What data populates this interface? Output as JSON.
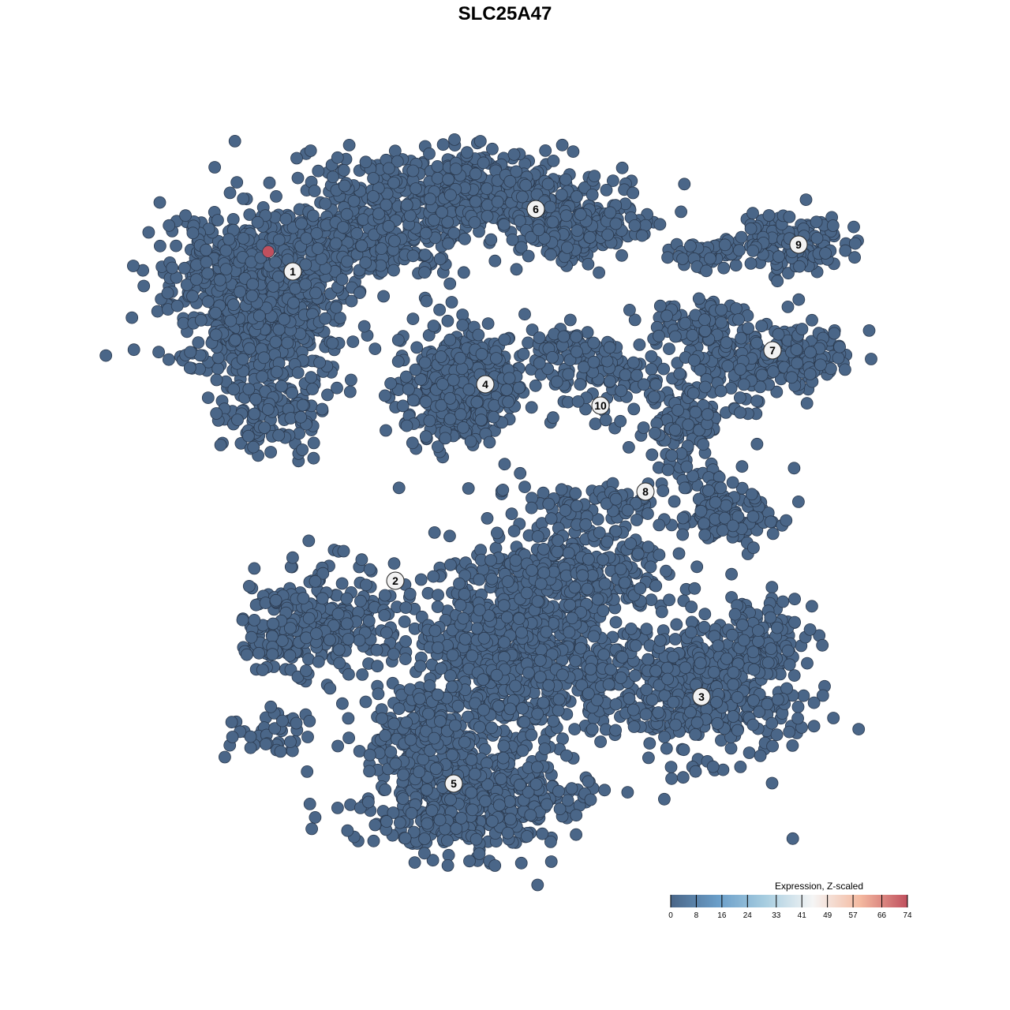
{
  "chart_data": {
    "type": "scatter",
    "title": "SLC25A47",
    "xlabel": "",
    "ylabel": "",
    "grid": false,
    "cluster_labels": [
      "1",
      "2",
      "3",
      "4",
      "5",
      "6",
      "7",
      "8",
      "9",
      "10"
    ],
    "point_color_default": "#4a6688",
    "highlight_point": {
      "cluster": "1",
      "value": 74,
      "color": "#c0505e"
    },
    "legend": {
      "title": "Expression, Z-scaled",
      "placement": "bottom-right",
      "ticks": [
        "0",
        "8",
        "16",
        "24",
        "33",
        "41",
        "49",
        "57",
        "66",
        "74"
      ],
      "range": [
        0,
        74
      ],
      "colors": [
        "#4a6688",
        "#6a9ec9",
        "#a7cde0",
        "#f5f5f5",
        "#f4b9a0",
        "#c0505e"
      ]
    }
  }
}
